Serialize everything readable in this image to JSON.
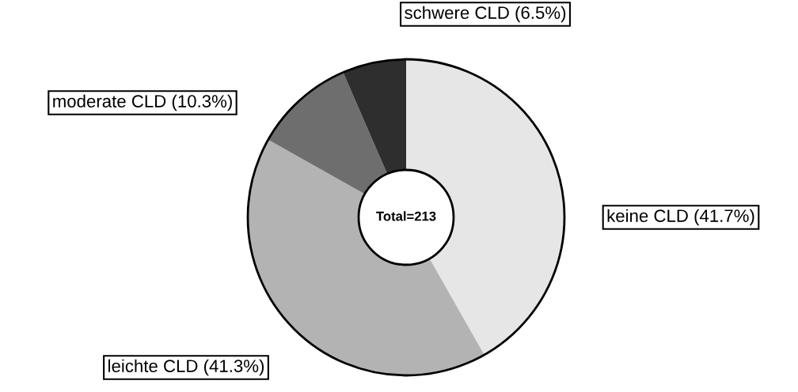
{
  "chart_data": {
    "type": "donut",
    "categories": [
      "keine CLD (41.7%)",
      "leichte CLD (41.3%)",
      "moderate CLD (10.3%)",
      "schwere CLD (6.5%)"
    ],
    "values": [
      41.7,
      41.3,
      10.3,
      6.5
    ],
    "colors": [
      "#e6e6e6",
      "#b3b3b3",
      "#6e6e6e",
      "#2e2e2e"
    ],
    "annotations": [
      "Total=213"
    ],
    "legend": false
  }
}
